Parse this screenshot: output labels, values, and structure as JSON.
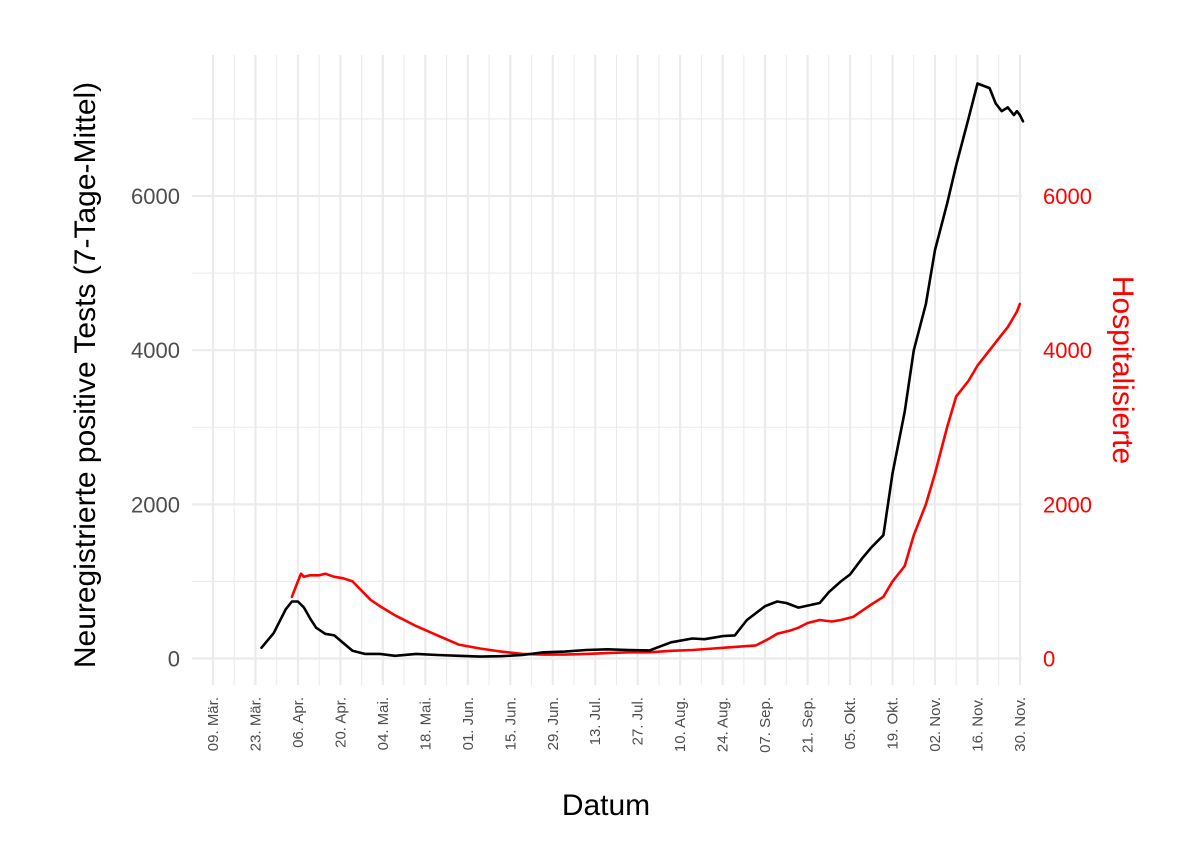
{
  "chart_data": {
    "type": "line",
    "title": "",
    "xlabel": "Datum",
    "ylabel": "Neuregistrierte positive Tests (7-Tage-Mittel)",
    "y2label": "Hospitalisierte",
    "ylim": [
      -150,
      7550
    ],
    "y_ticks": [
      "0",
      "2000",
      "4000",
      "6000"
    ],
    "y2_ticks": [
      "0",
      "2000",
      "4000",
      "6000"
    ],
    "x_ticks": [
      "09. Mär.",
      "23. Mär.",
      "06. Apr.",
      "20. Apr.",
      "04. Mai.",
      "18. Mai.",
      "01. Jun.",
      "15. Jun.",
      "29. Jun.",
      "13. Jul.",
      "27. Jul.",
      "10. Aug.",
      "24. Aug.",
      "07. Sep.",
      "21. Sep.",
      "05. Okt.",
      "19. Okt.",
      "02. Nov.",
      "16. Nov.",
      "30. Nov."
    ],
    "grid": true,
    "legend": "none",
    "colors": {
      "tests": "#000000",
      "hospitalized": "#ff0000",
      "grid": "#ebebeb"
    },
    "series": [
      {
        "label": "Neuregistrierte positive Tests (7-Tage-Mittel)",
        "axis": "left",
        "x": [
          16,
          20,
          24,
          26,
          28,
          30,
          32,
          34,
          37,
          40,
          43,
          46,
          50,
          55,
          60,
          67,
          74,
          81,
          88,
          95,
          102,
          109,
          116,
          123,
          130,
          137,
          144,
          151,
          158,
          162,
          165,
          168,
          172,
          176,
          182,
          186,
          189,
          193,
          200,
          203,
          207,
          210,
          214,
          217,
          221,
          224,
          228,
          231,
          235,
          238,
          242,
          245,
          249,
          252,
          256,
          258,
          260,
          262,
          264,
          265,
          266,
          267
        ],
        "y": [
          140,
          330,
          640,
          740,
          740,
          660,
          520,
          400,
          320,
          300,
          200,
          100,
          60,
          60,
          35,
          60,
          45,
          35,
          25,
          30,
          45,
          80,
          90,
          110,
          120,
          110,
          105,
          210,
          260,
          250,
          270,
          290,
          300,
          500,
          680,
          740,
          720,
          660,
          720,
          860,
          1000,
          1090,
          1300,
          1440,
          1600,
          2400,
          3200,
          4000,
          4600,
          5300,
          5900,
          6400,
          7000,
          7460,
          7400,
          7200,
          7100,
          7150,
          7050,
          7100,
          7050,
          6970
        ]
      },
      {
        "label": "Hospitalisierte",
        "axis": "right",
        "x": [
          26,
          28,
          29,
          30,
          32,
          35,
          37,
          40,
          43,
          46,
          49,
          52,
          55,
          60,
          67,
          74,
          81,
          88,
          95,
          102,
          109,
          116,
          123,
          130,
          137,
          144,
          151,
          158,
          165,
          172,
          179,
          183,
          186,
          190,
          193,
          196,
          200,
          204,
          207,
          211,
          214,
          217,
          221,
          224,
          228,
          231,
          235,
          238,
          242,
          245,
          249,
          252,
          256,
          259,
          262,
          265,
          266
        ],
        "y": [
          800,
          1000,
          1100,
          1060,
          1080,
          1080,
          1100,
          1060,
          1040,
          1000,
          880,
          760,
          680,
          560,
          420,
          300,
          180,
          130,
          90,
          60,
          50,
          50,
          60,
          70,
          80,
          80,
          100,
          110,
          130,
          150,
          170,
          250,
          320,
          360,
          400,
          460,
          500,
          480,
          500,
          540,
          620,
          700,
          800,
          1000,
          1200,
          1600,
          2000,
          2400,
          3000,
          3400,
          3600,
          3800,
          4000,
          4150,
          4300,
          4500,
          4600
        ]
      }
    ]
  }
}
